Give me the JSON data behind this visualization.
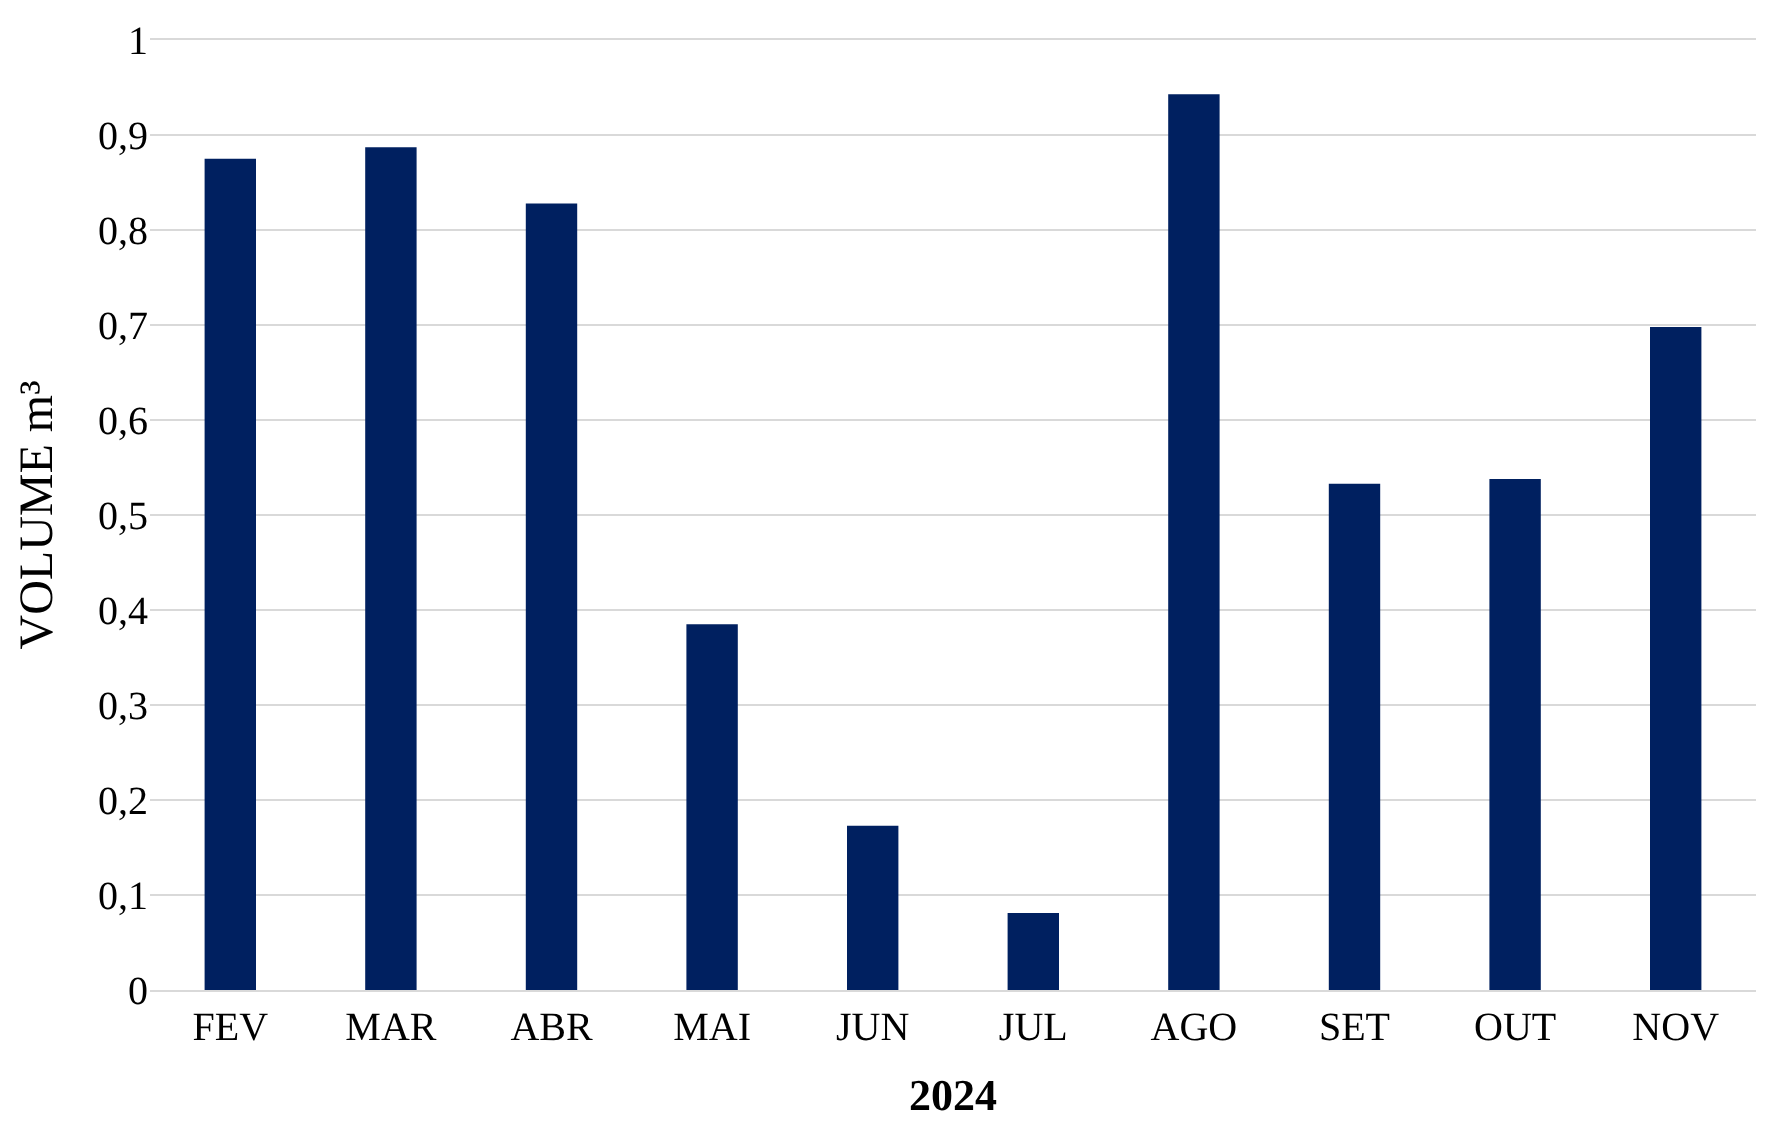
{
  "chart_data": {
    "type": "bar",
    "xlabel": "2024",
    "ylabel": "VOLUME m³",
    "categories": [
      "FEV",
      "MAR",
      "ABR",
      "MAI",
      "JUN",
      "JUL",
      "AGO",
      "SET",
      "OUT",
      "NOV"
    ],
    "series": [
      {
        "color": "#002060",
        "values": [
          0.875,
          0.887,
          0.828,
          0.385,
          0.173,
          0.081,
          0.943,
          0.533,
          0.538,
          0.698
        ]
      }
    ],
    "ylim": [
      0,
      1
    ],
    "yticks": [
      0,
      {
        "value": 0.1,
        "label": "0,1"
      },
      {
        "value": 0.2,
        "label": "0,2"
      },
      {
        "value": 0.3,
        "label": "0,3"
      },
      {
        "value": 0.4,
        "label": "0,4"
      },
      {
        "value": 0.5,
        "label": "0,5"
      },
      {
        "value": 0.6,
        "label": "0,6"
      },
      {
        "value": 0.7,
        "label": "0,7"
      },
      {
        "value": 0.8,
        "label": "0,8"
      },
      {
        "value": 0.9,
        "label": "0,9"
      },
      1
    ],
    "grid": "y"
  }
}
